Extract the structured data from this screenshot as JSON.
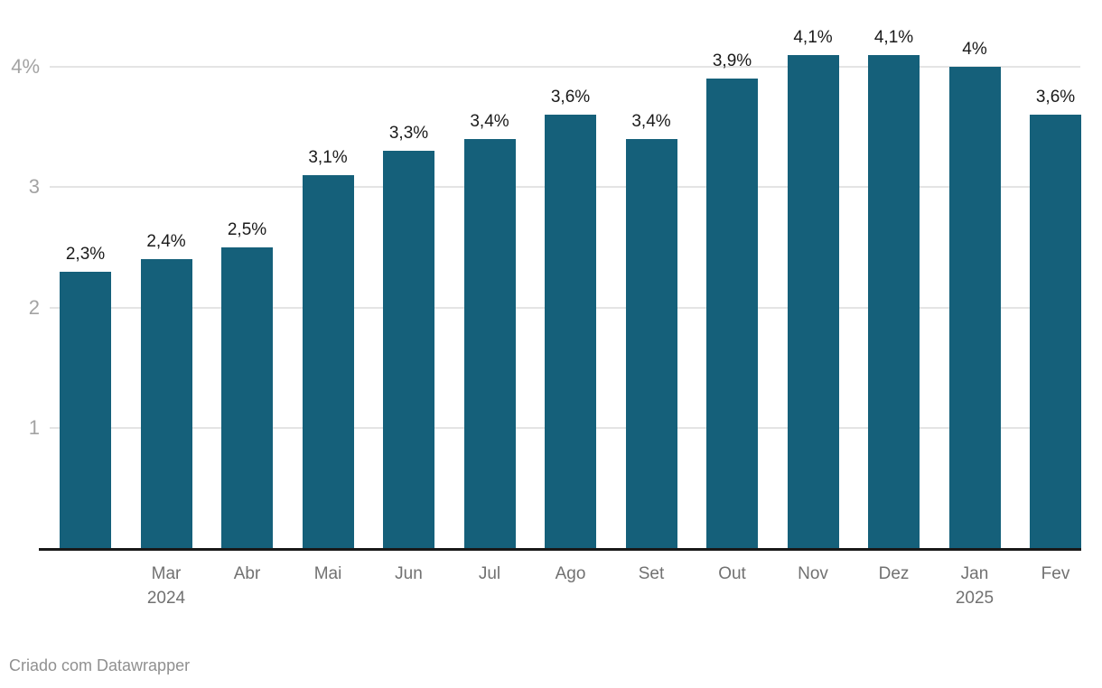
{
  "chart_data": {
    "type": "bar",
    "categories": [
      {
        "label": "",
        "year": ""
      },
      {
        "label": "Mar",
        "year": "2024"
      },
      {
        "label": "Abr",
        "year": ""
      },
      {
        "label": "Mai",
        "year": ""
      },
      {
        "label": "Jun",
        "year": ""
      },
      {
        "label": "Jul",
        "year": ""
      },
      {
        "label": "Ago",
        "year": ""
      },
      {
        "label": "Set",
        "year": ""
      },
      {
        "label": "Out",
        "year": ""
      },
      {
        "label": "Nov",
        "year": ""
      },
      {
        "label": "Dez",
        "year": ""
      },
      {
        "label": "Jan",
        "year": "2025"
      },
      {
        "label": "Fev",
        "year": ""
      }
    ],
    "values": [
      2.3,
      2.4,
      2.5,
      3.1,
      3.3,
      3.4,
      3.6,
      3.4,
      3.9,
      4.1,
      4.1,
      4.0,
      3.6
    ],
    "value_labels": [
      "2,3%",
      "2,4%",
      "2,5%",
      "3,1%",
      "3,3%",
      "3,4%",
      "3,6%",
      "3,4%",
      "3,9%",
      "4,1%",
      "4,1%",
      "4%",
      "3,6%"
    ],
    "y_ticks": [
      {
        "value": 1,
        "label": "1"
      },
      {
        "value": 2,
        "label": "2"
      },
      {
        "value": 3,
        "label": "3"
      },
      {
        "value": 4,
        "label": "4%"
      }
    ],
    "ylim": [
      0,
      4.55
    ],
    "grid": true,
    "legend": "none",
    "title": "",
    "xlabel": "",
    "ylabel": ""
  },
  "colors": {
    "bar": "#15607a",
    "gridline": "#e4e4e4",
    "baseline": "#191919",
    "y_tick_label": "#a3a3a3",
    "x_tick_label": "#717171",
    "value_label": "#1a1a1a",
    "attribution": "#909090"
  },
  "footer": {
    "attribution": "Criado com Datawrapper"
  }
}
